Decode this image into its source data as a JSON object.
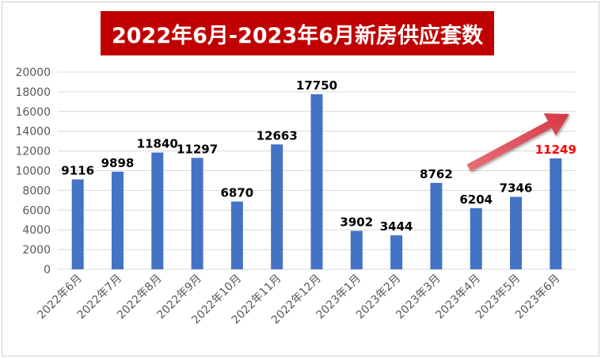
{
  "chart_data": {
    "type": "bar",
    "title": "2022年6月-2023年6月新房供应套数",
    "categories": [
      "2022年6月",
      "2022年7月",
      "2022年8月",
      "2022年9月",
      "2022年10月",
      "2022年11月",
      "2022年12月",
      "2023年1月",
      "2023年2月",
      "2023年3月",
      "2023年4月",
      "2023年5月",
      "2023年6月"
    ],
    "values": [
      9116,
      9898,
      11840,
      11297,
      6870,
      12663,
      17750,
      3902,
      3444,
      8762,
      6204,
      7346,
      11249
    ],
    "data_labels": [
      "9116",
      "9898",
      "11840",
      "11297",
      "6870",
      "12663",
      "17750",
      "3902",
      "3444",
      "8762",
      "6204",
      "7346",
      "11249"
    ],
    "highlight_index": 12,
    "yticks": [
      "0",
      "2000",
      "4000",
      "6000",
      "8000",
      "10000",
      "12000",
      "14000",
      "16000",
      "18000",
      "20000"
    ],
    "ylim": [
      0,
      20000
    ],
    "grid": true,
    "legend": "none",
    "annotation": "upward-trend-arrow",
    "colors": {
      "bar": "#4472c4",
      "title_bg": "#c00000",
      "title_text": "#ffffff",
      "label": "#000000",
      "highlight_label": "#ff0000",
      "arrow": "#e0505a",
      "grid": "#d9d9d9",
      "tick_text": "#595959"
    }
  }
}
